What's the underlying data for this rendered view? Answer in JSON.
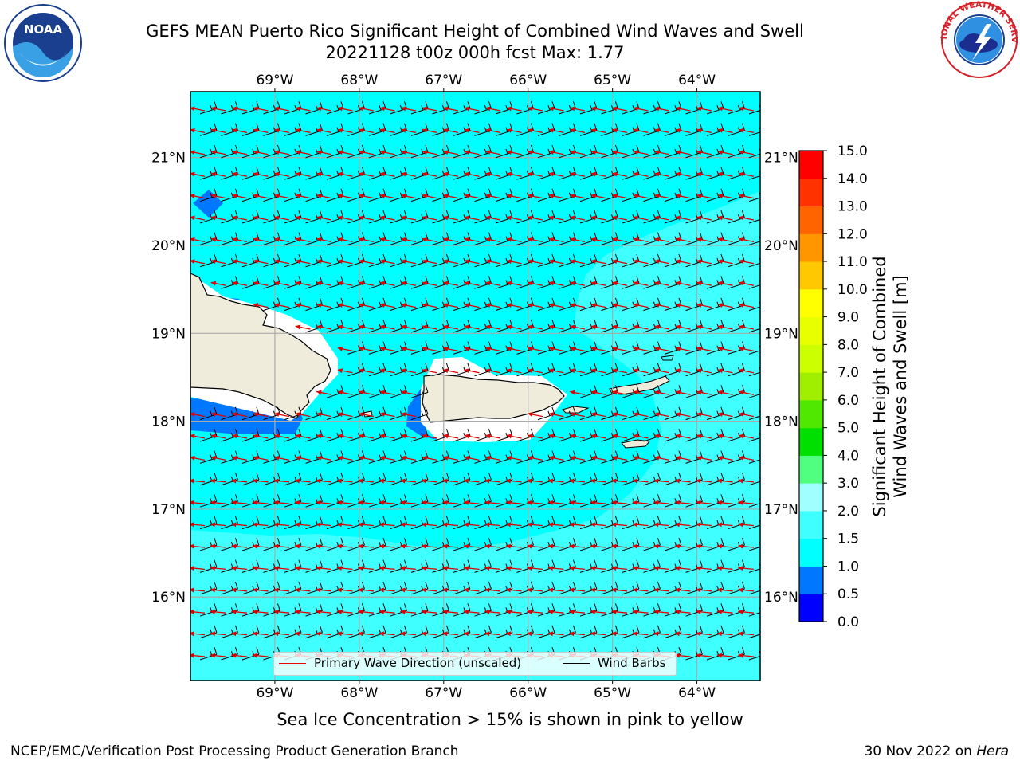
{
  "header": {
    "title_line1": "GEFS MEAN Puerto Rico Significant Height of Combined Wind Waves and Swell",
    "title_line2": "20221128 t00z 000h fcst   Max: 1.77"
  },
  "logos": {
    "left": {
      "icon": "noaa-logo",
      "text": "NOAA"
    },
    "right": {
      "icon": "nws-logo",
      "text": "NATIONAL WEATHER SERVICE"
    }
  },
  "map": {
    "lon_range": [
      -70,
      -63.25
    ],
    "lat_range": [
      15.05,
      21.75
    ],
    "lon_ticks": [
      {
        "value": -69,
        "label": "69°W"
      },
      {
        "value": -68,
        "label": "68°W"
      },
      {
        "value": -67,
        "label": "67°W"
      },
      {
        "value": -66,
        "label": "66°W"
      },
      {
        "value": -65,
        "label": "65°W"
      },
      {
        "value": -64,
        "label": "64°W"
      }
    ],
    "lat_ticks": [
      {
        "value": 21,
        "label": "21°N"
      },
      {
        "value": 20,
        "label": "20°N"
      },
      {
        "value": 19,
        "label": "19°N"
      },
      {
        "value": 18,
        "label": "18°N"
      },
      {
        "value": 17,
        "label": "17°N"
      },
      {
        "value": 16,
        "label": "16°N"
      }
    ],
    "ocean_color": "#00ffff",
    "land_color": "#efecdc",
    "grid": true
  },
  "colorbar": {
    "title_line1": "Significant Height of Combined",
    "title_line2": "Wind Waves and Swell [m]",
    "levels": [
      "0.0",
      "0.5",
      "1.0",
      "1.5",
      "2.0",
      "3.0",
      "4.0",
      "5.0",
      "6.0",
      "7.0",
      "8.0",
      "9.0",
      "10.0",
      "11.0",
      "12.0",
      "13.0",
      "14.0",
      "15.0"
    ],
    "colors": [
      "#0000ff",
      "#0077ff",
      "#00ffff",
      "#40ffff",
      "#a0ffff",
      "#50ff80",
      "#00e000",
      "#50e800",
      "#a0ee00",
      "#ccff00",
      "#e8ff00",
      "#ffff00",
      "#ffc800",
      "#ff9600",
      "#ff6400",
      "#ff3200",
      "#ff0000"
    ]
  },
  "legend": {
    "wave_label": "Primary Wave Direction (unscaled)",
    "barb_label": "Wind Barbs",
    "wave_color": "#e00000",
    "barb_color": "#000000"
  },
  "notes": {
    "ice": "Sea Ice Concentration > 15% is shown in pink to yellow"
  },
  "footer": {
    "left": "NCEP/EMC/Verification Post Processing Product Generation Branch",
    "date": "30 Nov 2022 on ",
    "machine": "Hera"
  }
}
